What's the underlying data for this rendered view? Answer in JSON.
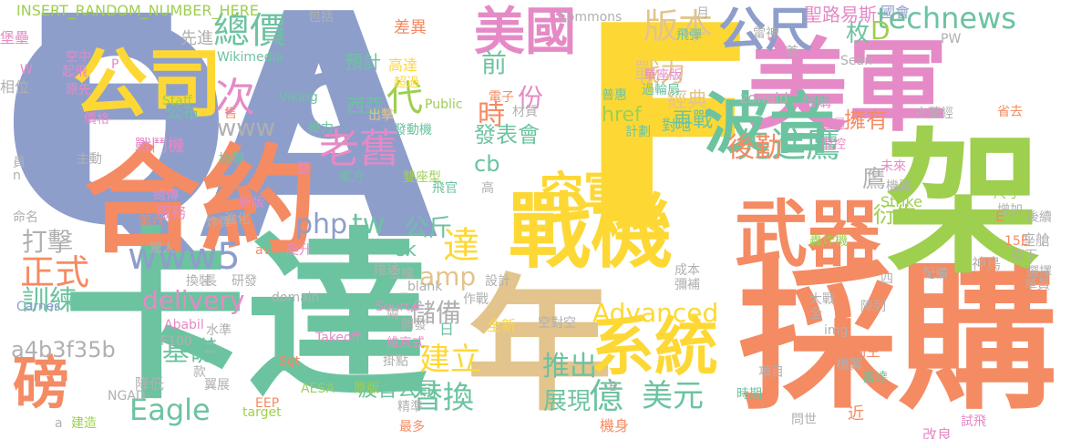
{
  "palette": {
    "blue": "#8e9ecb",
    "yellow": "#fdd835",
    "green": "#6cc3a0",
    "orange": "#f48b63",
    "pink": "#e58ac6",
    "olive": "#9ecf4f",
    "tan": "#e2c48c",
    "gray": "#b0b0b0"
  },
  "words": [
    {
      "text": "Q",
      "color": "blue"
    },
    {
      "text": "A",
      "color": "blue"
    },
    {
      "text": "F",
      "color": "yellow"
    },
    {
      "text": "F",
      "color": "blue"
    },
    {
      "text": "卡達",
      "color": "green"
    },
    {
      "text": "採購",
      "color": "orange"
    },
    {
      "text": "合約",
      "color": "orange"
    },
    {
      "text": "美軍",
      "color": "pink"
    },
    {
      "text": "架",
      "color": "olive"
    },
    {
      "text": "年",
      "color": "tan"
    },
    {
      "text": "戰機",
      "color": "yellow"
    },
    {
      "text": "波音",
      "color": "green"
    },
    {
      "text": "C",
      "color": "blue"
    },
    {
      "text": "公司",
      "color": "yellow"
    },
    {
      "text": "武器",
      "color": "orange"
    },
    {
      "text": "系統",
      "color": "yellow"
    },
    {
      "text": "美國",
      "color": "pink"
    },
    {
      "text": "公尺",
      "color": "blue"
    },
    {
      "text": "磅",
      "color": "orange"
    },
    {
      "text": "空軍",
      "color": "yellow"
    },
    {
      "text": "先進鷹",
      "color": "green"
    },
    {
      "text": "老舊",
      "color": "pink"
    },
    {
      "text": "版本",
      "color": "tan"
    },
    {
      "text": "總價",
      "color": "green"
    },
    {
      "text": "www5",
      "color": "blue"
    },
    {
      "text": "technews",
      "color": "green"
    },
    {
      "text": "次",
      "color": "pink"
    },
    {
      "text": "正式",
      "color": "orange"
    },
    {
      "text": "後勤",
      "color": "orange"
    },
    {
      "text": "替換",
      "color": "green"
    },
    {
      "text": "美元",
      "color": "green"
    },
    {
      "text": "億",
      "color": "green"
    },
    {
      "text": "Eagle",
      "color": "green"
    },
    {
      "text": "delivery",
      "color": "pink"
    },
    {
      "text": "php",
      "color": "blue"
    },
    {
      "text": "tw",
      "color": "green"
    },
    {
      "text": "www",
      "color": "gray"
    },
    {
      "text": "代",
      "color": "olive"
    },
    {
      "text": "戰力",
      "color": "tan"
    },
    {
      "text": "D",
      "color": "olive"
    },
    {
      "text": "建立",
      "color": "yellow"
    },
    {
      "text": "推出",
      "color": "green"
    },
    {
      "text": "訓練",
      "color": "green"
    },
    {
      "text": "打擊",
      "color": "gray"
    },
    {
      "text": "基礎",
      "color": "green"
    },
    {
      "text": "達",
      "color": "yellow"
    },
    {
      "text": "公斤",
      "color": "green"
    },
    {
      "text": "amp",
      "color": "tan"
    },
    {
      "text": "儲備",
      "color": "gray"
    },
    {
      "text": "Advanced",
      "color": "yellow"
    },
    {
      "text": "展現",
      "color": "green"
    },
    {
      "text": "份",
      "color": "pink"
    },
    {
      "text": "前",
      "color": "green"
    },
    {
      "text": "時",
      "color": "orange"
    },
    {
      "text": "枚",
      "color": "green"
    },
    {
      "text": "發表會",
      "color": "green"
    },
    {
      "text": "擁有",
      "color": "orange"
    },
    {
      "text": "再戰",
      "color": "green"
    },
    {
      "text": "鷹",
      "color": "gray"
    },
    {
      "text": "a4b3f35b",
      "color": "gray"
    },
    {
      "text": "cb",
      "color": "green"
    },
    {
      "text": "經典",
      "color": "tan"
    },
    {
      "text": "預計",
      "color": "green"
    },
    {
      "text": "西亞",
      "color": "green"
    },
    {
      "text": "公布",
      "color": "green"
    },
    {
      "text": "戰鬥機",
      "color": "pink"
    },
    {
      "text": "衍生",
      "color": "olive"
    },
    {
      "text": "ck",
      "color": "green"
    },
    {
      "text": "波音公司",
      "color": "green"
    },
    {
      "text": "href",
      "color": "olive"
    },
    {
      "text": "INSERT_RANDOM_NUMBER_HERE",
      "color": "olive"
    },
    {
      "text": "包括",
      "color": "gray"
    },
    {
      "text": "Commons",
      "color": "gray"
    },
    {
      "text": "差異",
      "color": "orange"
    },
    {
      "text": "聖路易斯",
      "color": "pink"
    },
    {
      "text": "國會",
      "color": "blue"
    },
    {
      "text": "堡壘",
      "color": "pink"
    },
    {
      "text": "先進",
      "color": "gray"
    },
    {
      "text": "Wikimedia",
      "color": "green"
    },
    {
      "text": "空中",
      "color": "pink"
    },
    {
      "text": "起飛",
      "color": "pink"
    },
    {
      "text": "原先",
      "color": "pink"
    },
    {
      "text": "相位",
      "color": "gray"
    },
    {
      "text": "W",
      "color": "pink"
    },
    {
      "text": "P",
      "color": "pink"
    },
    {
      "text": "Staff",
      "color": "olive"
    },
    {
      "text": "售",
      "color": "orange"
    },
    {
      "text": "Viking",
      "color": "green"
    },
    {
      "text": "出擊",
      "color": "tan"
    },
    {
      "text": "超過",
      "color": "yellow"
    },
    {
      "text": "高達",
      "color": "yellow"
    },
    {
      "text": "Public",
      "color": "olive"
    },
    {
      "text": "發動機",
      "color": "green"
    },
    {
      "text": "材質",
      "color": "gray"
    },
    {
      "text": "推力",
      "color": "green"
    },
    {
      "text": "價格",
      "color": "pink"
    },
    {
      "text": "擴帶",
      "color": "green"
    },
    {
      "text": "主動",
      "color": "gray"
    },
    {
      "text": "整",
      "color": "pink"
    },
    {
      "text": "軍方",
      "color": "green"
    },
    {
      "text": "雙座型",
      "color": "olive"
    },
    {
      "text": "飛官",
      "color": "green"
    },
    {
      "text": "高",
      "color": "gray"
    },
    {
      "text": "電子",
      "color": "orange"
    },
    {
      "text": "普惠",
      "color": "green"
    },
    {
      "text": "計劃",
      "color": "green"
    },
    {
      "text": "單座版",
      "color": "pink"
    },
    {
      "text": "過輪扇",
      "color": "green"
    },
    {
      "text": "對地",
      "color": "green"
    },
    {
      "text": "飛彈",
      "color": "green"
    },
    {
      "text": "月",
      "color": "gray"
    },
    {
      "text": "雷神",
      "color": "gray"
    },
    {
      "text": "首",
      "color": "gray"
    },
    {
      "text": "Sean",
      "color": "gray"
    },
    {
      "text": "PW",
      "color": "gray"
    },
    {
      "text": "zoneid",
      "color": "gray"
    },
    {
      "text": "增購",
      "color": "pink"
    },
    {
      "text": "古蘭經",
      "color": "gray"
    },
    {
      "text": "省去",
      "color": "orange"
    },
    {
      "text": "重量",
      "color": "pink"
    },
    {
      "text": "飛控",
      "color": "pink"
    },
    {
      "text": "尺寸",
      "color": "olive"
    },
    {
      "text": "增加",
      "color": "gray"
    },
    {
      "text": "未來",
      "color": "pink"
    },
    {
      "text": "機翼",
      "color": "gray"
    },
    {
      "text": "Strike",
      "color": "olive"
    },
    {
      "text": "後續",
      "color": "gray"
    },
    {
      "text": "E",
      "color": "orange"
    },
    {
      "text": "座艙",
      "color": "gray"
    },
    {
      "text": "轟炸機",
      "color": "olive"
    },
    {
      "text": "15E",
      "color": "orange"
    },
    {
      "text": "簽下",
      "color": "gray"
    },
    {
      "text": "神鳥",
      "color": "gray"
    },
    {
      "text": "選擇",
      "color": "gray"
    },
    {
      "text": "單員",
      "color": "gray"
    },
    {
      "text": "配備",
      "color": "gray"
    },
    {
      "text": "成本",
      "color": "gray"
    },
    {
      "text": "彌補",
      "color": "gray"
    },
    {
      "text": "大戰",
      "color": "gray"
    },
    {
      "text": "全",
      "color": "gray"
    },
    {
      "text": "陣列",
      "color": "gray"
    },
    {
      "text": "img",
      "color": "gray"
    },
    {
      "text": "制空",
      "color": "orange"
    },
    {
      "text": "機翼",
      "color": "gray"
    },
    {
      "text": "雷達",
      "color": "green"
    },
    {
      "text": "項目",
      "color": "gray"
    },
    {
      "text": "時期",
      "color": "green"
    },
    {
      "text": "近",
      "color": "orange"
    },
    {
      "text": "問世",
      "color": "gray"
    },
    {
      "text": "試飛",
      "color": "pink"
    },
    {
      "text": "改良",
      "color": "pink"
    },
    {
      "text": "機身",
      "color": "orange"
    },
    {
      "text": "B",
      "color": "gray"
    },
    {
      "text": "精準",
      "color": "gray"
    },
    {
      "text": "最多",
      "color": "orange"
    },
    {
      "text": "掛點",
      "color": "gray"
    },
    {
      "text": "全新",
      "color": "yellow"
    },
    {
      "text": "空對空",
      "color": "gray"
    },
    {
      "text": "日",
      "color": "green"
    },
    {
      "text": "開發",
      "color": "gray"
    },
    {
      "text": "維京式",
      "color": "pink"
    },
    {
      "text": "Source",
      "color": "pink"
    },
    {
      "text": "原版",
      "color": "olive"
    },
    {
      "text": "兩",
      "color": "gray"
    },
    {
      "text": "作戰",
      "color": "gray"
    },
    {
      "text": "_blank",
      "color": "gray"
    },
    {
      "text": "設計",
      "color": "gray"
    },
    {
      "text": "空檔",
      "color": "gray"
    },
    {
      "text": "描述",
      "color": "gray"
    },
    {
      "text": "Takeoff",
      "color": "pink"
    },
    {
      "text": "Sgt",
      "color": "orange"
    },
    {
      "text": "AESA",
      "color": "olive"
    },
    {
      "text": "EEP",
      "color": "orange"
    },
    {
      "text": "src",
      "color": "green"
    },
    {
      "text": "爬升",
      "color": "pink"
    },
    {
      "text": "avw",
      "color": "orange"
    },
    {
      "text": "研發",
      "color": "gray"
    },
    {
      "text": "長",
      "color": "gray"
    },
    {
      "text": "domain",
      "color": "gray"
    },
    {
      "text": "水準",
      "color": "gray"
    },
    {
      "text": "Ababil",
      "color": "pink"
    },
    {
      "text": "F100",
      "color": "gray"
    },
    {
      "text": "降低",
      "color": "gray"
    },
    {
      "text": "二",
      "color": "gray"
    },
    {
      "text": "款",
      "color": "gray"
    },
    {
      "text": "翼展",
      "color": "gray"
    },
    {
      "text": "NGAD",
      "color": "gray"
    },
    {
      "text": "a",
      "color": "gray"
    },
    {
      "text": "建造",
      "color": "olive"
    },
    {
      "text": "target",
      "color": "olive"
    },
    {
      "text": "換裝",
      "color": "gray"
    },
    {
      "text": "Carnes",
      "color": "blue"
    },
    {
      "text": "驚人",
      "color": "gray"
    },
    {
      "text": "強化",
      "color": "gray"
    },
    {
      "text": "炸彈",
      "color": "gray"
    },
    {
      "text": "新版",
      "color": "pink"
    },
    {
      "text": "服務",
      "color": "pink"
    },
    {
      "text": "總傳",
      "color": "pink"
    },
    {
      "text": "第六",
      "color": "orange"
    },
    {
      "text": "命名",
      "color": "gray"
    },
    {
      "text": "員",
      "color": "gray"
    },
    {
      "text": "n",
      "color": "gray"
    },
    {
      "text": "四",
      "color": "gray"
    }
  ]
}
